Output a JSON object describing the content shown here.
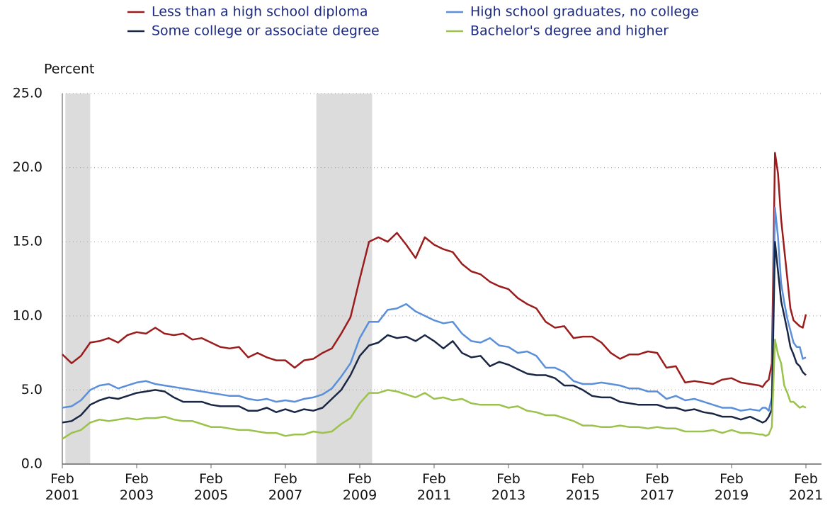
{
  "chart_data": {
    "type": "line",
    "y_label": "Percent",
    "x": [
      "2001-02",
      "2001-05",
      "2001-08",
      "2001-11",
      "2002-02",
      "2002-05",
      "2002-08",
      "2002-11",
      "2003-02",
      "2003-05",
      "2003-08",
      "2003-11",
      "2004-02",
      "2004-05",
      "2004-08",
      "2004-11",
      "2005-02",
      "2005-05",
      "2005-08",
      "2005-11",
      "2006-02",
      "2006-05",
      "2006-08",
      "2006-11",
      "2007-02",
      "2007-05",
      "2007-08",
      "2007-11",
      "2008-02",
      "2008-05",
      "2008-08",
      "2008-11",
      "2009-02",
      "2009-05",
      "2009-08",
      "2009-11",
      "2010-02",
      "2010-05",
      "2010-08",
      "2010-11",
      "2011-02",
      "2011-05",
      "2011-08",
      "2011-11",
      "2012-02",
      "2012-05",
      "2012-08",
      "2012-11",
      "2013-02",
      "2013-05",
      "2013-08",
      "2013-11",
      "2014-02",
      "2014-05",
      "2014-08",
      "2014-11",
      "2015-02",
      "2015-05",
      "2015-08",
      "2015-11",
      "2016-02",
      "2016-05",
      "2016-08",
      "2016-11",
      "2017-02",
      "2017-05",
      "2017-08",
      "2017-11",
      "2018-02",
      "2018-05",
      "2018-08",
      "2018-11",
      "2019-02",
      "2019-05",
      "2019-08",
      "2019-11",
      "2019-12",
      "2020-01",
      "2020-02",
      "2020-03",
      "2020-04",
      "2020-05",
      "2020-06",
      "2020-07",
      "2020-08",
      "2020-09",
      "2020-10",
      "2020-11",
      "2020-12",
      "2021-01",
      "2021-02"
    ],
    "series": [
      {
        "name": "Less than a high school diploma",
        "color": "#9b1c1c",
        "values": [
          7.4,
          6.8,
          7.3,
          8.2,
          8.3,
          8.5,
          8.2,
          8.7,
          8.9,
          8.8,
          9.2,
          8.8,
          8.7,
          8.8,
          8.4,
          8.5,
          8.2,
          7.9,
          7.8,
          7.9,
          7.2,
          7.5,
          7.2,
          7.0,
          7.0,
          6.5,
          7.0,
          7.1,
          7.5,
          7.8,
          8.8,
          9.9,
          12.5,
          15.0,
          15.3,
          15.0,
          15.6,
          14.8,
          13.9,
          15.3,
          14.8,
          14.5,
          14.3,
          13.5,
          13.0,
          12.8,
          12.3,
          12.0,
          11.8,
          11.2,
          10.8,
          10.5,
          9.6,
          9.2,
          9.3,
          8.5,
          8.6,
          8.6,
          8.2,
          7.5,
          7.1,
          7.4,
          7.4,
          7.6,
          7.5,
          6.5,
          6.6,
          5.5,
          5.6,
          5.5,
          5.4,
          5.7,
          5.8,
          5.5,
          5.4,
          5.3,
          5.2,
          5.5,
          5.7,
          6.8,
          21.0,
          19.6,
          16.5,
          14.5,
          12.5,
          10.5,
          9.7,
          9.5,
          9.3,
          9.2,
          10.1
        ]
      },
      {
        "name": "High school graduates, no college",
        "color": "#5b8fd9",
        "values": [
          3.8,
          3.9,
          4.3,
          5.0,
          5.3,
          5.4,
          5.1,
          5.3,
          5.5,
          5.6,
          5.4,
          5.3,
          5.2,
          5.1,
          5.0,
          4.9,
          4.8,
          4.7,
          4.6,
          4.6,
          4.4,
          4.3,
          4.4,
          4.2,
          4.3,
          4.2,
          4.4,
          4.5,
          4.7,
          5.1,
          5.9,
          6.8,
          8.5,
          9.6,
          9.6,
          10.4,
          10.5,
          10.8,
          10.3,
          10.0,
          9.7,
          9.5,
          9.6,
          8.8,
          8.3,
          8.2,
          8.5,
          8.0,
          7.9,
          7.5,
          7.6,
          7.3,
          6.5,
          6.5,
          6.2,
          5.6,
          5.4,
          5.4,
          5.5,
          5.4,
          5.3,
          5.1,
          5.1,
          4.9,
          4.9,
          4.4,
          4.6,
          4.3,
          4.4,
          4.2,
          4.0,
          3.8,
          3.8,
          3.6,
          3.7,
          3.6,
          3.8,
          3.8,
          3.6,
          4.5,
          17.3,
          15.3,
          12.2,
          10.9,
          9.8,
          9.0,
          8.2,
          7.9,
          7.9,
          7.1,
          7.2
        ]
      },
      {
        "name": "Some college or associate degree",
        "color": "#1a2744",
        "values": [
          2.8,
          2.9,
          3.3,
          4.0,
          4.3,
          4.5,
          4.4,
          4.6,
          4.8,
          4.9,
          5.0,
          4.9,
          4.5,
          4.2,
          4.2,
          4.2,
          4.0,
          3.9,
          3.9,
          3.9,
          3.6,
          3.6,
          3.8,
          3.5,
          3.7,
          3.5,
          3.7,
          3.6,
          3.8,
          4.4,
          5.0,
          6.0,
          7.3,
          8.0,
          8.2,
          8.7,
          8.5,
          8.6,
          8.3,
          8.7,
          8.3,
          7.8,
          8.3,
          7.5,
          7.2,
          7.3,
          6.6,
          6.9,
          6.7,
          6.4,
          6.1,
          6.0,
          6.0,
          5.8,
          5.3,
          5.3,
          5.0,
          4.6,
          4.5,
          4.5,
          4.2,
          4.1,
          4.0,
          4.0,
          4.0,
          3.8,
          3.8,
          3.6,
          3.7,
          3.5,
          3.4,
          3.2,
          3.2,
          3.0,
          3.2,
          2.9,
          2.8,
          2.9,
          3.2,
          3.7,
          15.0,
          13.0,
          11.0,
          10.0,
          9.0,
          7.9,
          7.4,
          6.8,
          6.6,
          6.2,
          6.0
        ]
      },
      {
        "name": "Bachelor's degree and higher",
        "color": "#9bc24a",
        "values": [
          1.7,
          2.1,
          2.3,
          2.8,
          3.0,
          2.9,
          3.0,
          3.1,
          3.0,
          3.1,
          3.1,
          3.2,
          3.0,
          2.9,
          2.9,
          2.7,
          2.5,
          2.5,
          2.4,
          2.3,
          2.3,
          2.2,
          2.1,
          2.1,
          1.9,
          2.0,
          2.0,
          2.2,
          2.1,
          2.2,
          2.7,
          3.1,
          4.1,
          4.8,
          4.8,
          5.0,
          4.9,
          4.7,
          4.5,
          4.8,
          4.4,
          4.5,
          4.3,
          4.4,
          4.1,
          4.0,
          4.0,
          4.0,
          3.8,
          3.9,
          3.6,
          3.5,
          3.3,
          3.3,
          3.1,
          2.9,
          2.6,
          2.6,
          2.5,
          2.5,
          2.6,
          2.5,
          2.5,
          2.4,
          2.5,
          2.4,
          2.4,
          2.2,
          2.2,
          2.2,
          2.3,
          2.1,
          2.3,
          2.1,
          2.1,
          2.0,
          2.0,
          1.9,
          2.0,
          2.5,
          8.4,
          7.4,
          6.8,
          5.3,
          4.8,
          4.2,
          4.2,
          4.0,
          3.8,
          3.9,
          3.8
        ]
      }
    ],
    "xlim": [
      "2001-02",
      "2021-02"
    ],
    "xticks": [
      {
        "value": "2001-02",
        "label": "Feb 2001"
      },
      {
        "value": "2003-02",
        "label": "Feb 2003"
      },
      {
        "value": "2005-02",
        "label": "Feb 2005"
      },
      {
        "value": "2007-02",
        "label": "Feb 2007"
      },
      {
        "value": "2009-02",
        "label": "Feb 2009"
      },
      {
        "value": "2011-02",
        "label": "Feb 2011"
      },
      {
        "value": "2013-02",
        "label": "Feb 2013"
      },
      {
        "value": "2015-02",
        "label": "Feb 2015"
      },
      {
        "value": "2017-02",
        "label": "Feb 2017"
      },
      {
        "value": "2019-02",
        "label": "Feb 2019"
      },
      {
        "value": "2021-02",
        "label": "Feb 2021"
      }
    ],
    "ylim": [
      0,
      25
    ],
    "yticks": [
      {
        "value": 0,
        "label": "0.0"
      },
      {
        "value": 5,
        "label": "5.0"
      },
      {
        "value": 10,
        "label": "10.0"
      },
      {
        "value": 15,
        "label": "15.0"
      },
      {
        "value": 20,
        "label": "20.0"
      },
      {
        "value": 25,
        "label": "25.0"
      }
    ],
    "grid": true,
    "recessions": [
      {
        "start": "2001-03",
        "end": "2001-11"
      },
      {
        "start": "2007-12",
        "end": "2009-06"
      }
    ],
    "recession_color": "#dcdcdc"
  }
}
